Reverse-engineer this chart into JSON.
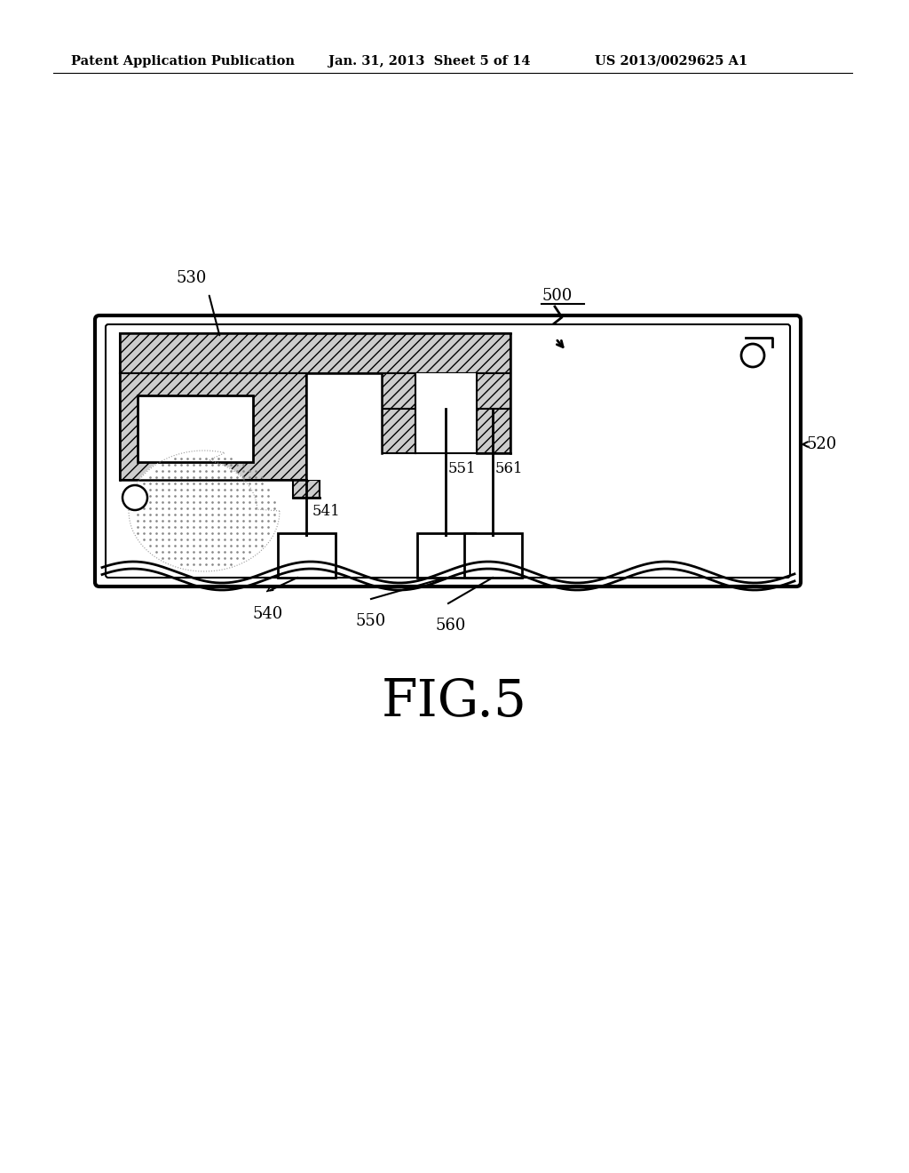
{
  "bg_color": "#ffffff",
  "header_left": "Patent Application Publication",
  "header_center": "Jan. 31, 2013  Sheet 5 of 14",
  "header_right": "US 2013/0029625 A1",
  "fig_label": "FIG.5",
  "ref_500": "500",
  "ref_520": "520",
  "ref_530": "530",
  "ref_540": "540",
  "ref_541": "541",
  "ref_550": "550",
  "ref_551": "551",
  "ref_560": "560",
  "ref_561": "561",
  "line_color": "#000000",
  "hatch_color": "#555555",
  "hatch_facecolor": "#cccccc"
}
